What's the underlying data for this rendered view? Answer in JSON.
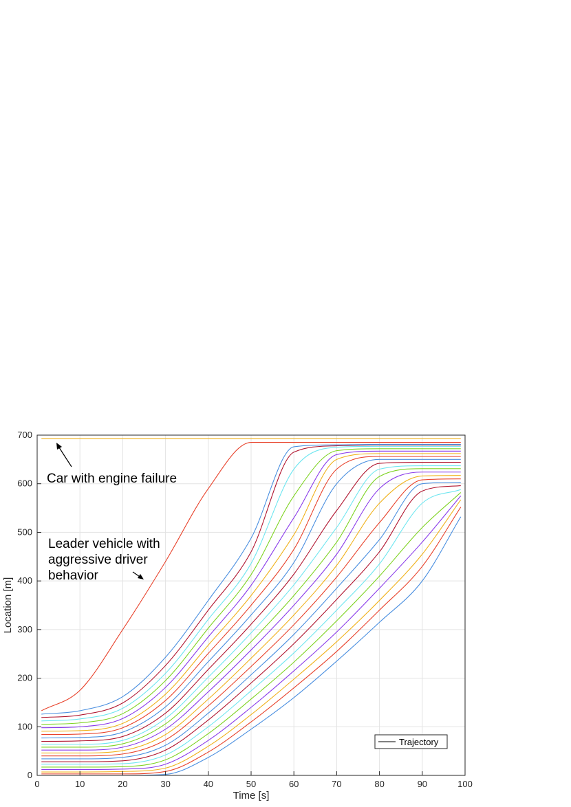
{
  "chart_data": {
    "type": "line",
    "title": "",
    "xlabel": "Time [s]",
    "ylabel": "Location [m]",
    "xlim": [
      0,
      100
    ],
    "ylim": [
      0,
      700
    ],
    "xticks": [
      "0",
      "10",
      "20",
      "30",
      "40",
      "50",
      "60",
      "70",
      "80",
      "90",
      "100"
    ],
    "yticks": [
      "0",
      "100",
      "200",
      "300",
      "400",
      "500",
      "600",
      "700"
    ],
    "grid": true,
    "legend": {
      "location": "bottom-right",
      "entries": [
        "Trajectory"
      ]
    },
    "annotations": [
      {
        "lines": [
          "Car with engine failure"
        ]
      },
      {
        "lines": [
          "Leader vehicle with",
          "aggressive driver",
          "behavior"
        ]
      }
    ],
    "colors": [
      "#0072BD",
      "#D95319",
      "#EDB120",
      "#7E2F8E",
      "#77AC30",
      "#4DBEEE",
      "#A2142F"
    ],
    "series_colors_cycle": [
      "#4A8FE0",
      "#E8422B",
      "#F0B21C",
      "#8A3BEA",
      "#7ED321",
      "#6FE6F0",
      "#B0152F"
    ],
    "series": [
      {
        "x": [
          1,
          10,
          20,
          30,
          40,
          50,
          60,
          70,
          80,
          90,
          99
        ],
        "y": [
          0,
          0,
          0,
          2,
          37,
          95,
          160,
          235,
          315,
          400,
          532
        ]
      },
      {
        "x": [
          1,
          10,
          20,
          30,
          40,
          50,
          60,
          70,
          80,
          90,
          99
        ],
        "y": [
          3,
          3,
          3,
          8,
          48,
          110,
          180,
          255,
          340,
          430,
          552
        ]
      },
      {
        "x": [
          1,
          10,
          20,
          30,
          40,
          50,
          60,
          70,
          80,
          90,
          99
        ],
        "y": [
          7,
          7,
          8,
          15,
          60,
          125,
          198,
          275,
          360,
          455,
          567
        ]
      },
      {
        "x": [
          1,
          10,
          20,
          30,
          40,
          50,
          60,
          70,
          80,
          90,
          99
        ],
        "y": [
          12,
          12,
          13,
          23,
          72,
          140,
          215,
          295,
          385,
          480,
          575
        ]
      },
      {
        "x": [
          1,
          10,
          20,
          30,
          40,
          50,
          60,
          70,
          80,
          90,
          99
        ],
        "y": [
          17,
          17,
          18,
          32,
          86,
          157,
          233,
          318,
          410,
          510,
          582
        ]
      },
      {
        "x": [
          1,
          10,
          20,
          30,
          40,
          50,
          60,
          70,
          80,
          90,
          99
        ],
        "y": [
          23,
          23,
          24,
          42,
          100,
          174,
          252,
          340,
          435,
          560,
          588
        ]
      },
      {
        "x": [
          1,
          10,
          20,
          30,
          40,
          50,
          60,
          70,
          80,
          90,
          99
        ],
        "y": [
          28,
          28,
          30,
          52,
          114,
          190,
          271,
          362,
          460,
          585,
          596
        ]
      },
      {
        "x": [
          1,
          10,
          20,
          30,
          40,
          50,
          60,
          70,
          80,
          90,
          99
        ],
        "y": [
          34,
          34,
          37,
          62,
          128,
          207,
          290,
          385,
          485,
          600,
          603
        ]
      },
      {
        "x": [
          1,
          10,
          20,
          30,
          40,
          50,
          60,
          70,
          80,
          90,
          99
        ],
        "y": [
          40,
          40,
          44,
          73,
          143,
          224,
          310,
          408,
          520,
          608,
          610
        ]
      },
      {
        "x": [
          1,
          10,
          20,
          30,
          40,
          50,
          60,
          70,
          80,
          90,
          99
        ],
        "y": [
          46,
          46,
          51,
          84,
          157,
          241,
          330,
          432,
          560,
          616,
          617
        ]
      },
      {
        "x": [
          1,
          10,
          20,
          30,
          40,
          50,
          60,
          70,
          80,
          90,
          99
        ],
        "y": [
          52,
          52,
          58,
          95,
          172,
          258,
          350,
          455,
          590,
          624,
          624
        ]
      },
      {
        "x": [
          1,
          10,
          20,
          30,
          40,
          50,
          60,
          70,
          80,
          90,
          99
        ],
        "y": [
          58,
          58,
          65,
          106,
          187,
          275,
          370,
          480,
          615,
          631,
          631
        ]
      },
      {
        "x": [
          1,
          10,
          20,
          30,
          40,
          50,
          60,
          70,
          80,
          90,
          99
        ],
        "y": [
          64,
          64,
          72,
          117,
          202,
          293,
          392,
          510,
          630,
          637,
          637
        ]
      },
      {
        "x": [
          1,
          10,
          20,
          30,
          40,
          50,
          60,
          70,
          80,
          90,
          99
        ],
        "y": [
          70,
          71,
          80,
          128,
          218,
          311,
          414,
          545,
          642,
          644,
          644
        ]
      },
      {
        "x": [
          1,
          10,
          20,
          30,
          40,
          50,
          60,
          70,
          80,
          90,
          99
        ],
        "y": [
          77,
          78,
          89,
          141,
          234,
          330,
          438,
          600,
          650,
          650,
          650
        ]
      },
      {
        "x": [
          1,
          10,
          20,
          30,
          40,
          50,
          60,
          70,
          80,
          90,
          99
        ],
        "y": [
          84,
          85,
          98,
          154,
          251,
          350,
          465,
          630,
          656,
          656,
          656
        ]
      },
      {
        "x": [
          1,
          10,
          20,
          30,
          40,
          50,
          60,
          70,
          80,
          90,
          99
        ],
        "y": [
          91,
          92,
          107,
          167,
          268,
          370,
          495,
          650,
          662,
          662,
          662
        ]
      },
      {
        "x": [
          1,
          10,
          20,
          30,
          40,
          50,
          60,
          70,
          80,
          90,
          99
        ],
        "y": [
          98,
          100,
          117,
          181,
          285,
          391,
          530,
          660,
          667,
          667,
          667
        ]
      },
      {
        "x": [
          1,
          10,
          20,
          30,
          40,
          50,
          60,
          70,
          80,
          90,
          99
        ],
        "y": [
          105,
          108,
          127,
          195,
          303,
          413,
          575,
          668,
          672,
          672,
          672
        ]
      },
      {
        "x": [
          1,
          10,
          20,
          30,
          40,
          50,
          60,
          70,
          80,
          90,
          99
        ],
        "y": [
          112,
          116,
          138,
          210,
          321,
          436,
          630,
          675,
          677,
          677,
          677
        ]
      },
      {
        "x": [
          1,
          10,
          20,
          30,
          40,
          50,
          60,
          70,
          80,
          90,
          99
        ],
        "y": [
          119,
          124,
          149,
          226,
          340,
          460,
          665,
          678,
          680,
          680,
          680
        ]
      },
      {
        "x": [
          1,
          10,
          20,
          30,
          40,
          50,
          60,
          70,
          80,
          90,
          99
        ],
        "y": [
          126,
          133,
          162,
          243,
          360,
          488,
          676,
          680,
          681,
          681,
          681
        ]
      },
      {
        "x": [
          1,
          10,
          20,
          30,
          40,
          50,
          60,
          70,
          80,
          90,
          99
        ],
        "y": [
          133,
          175,
          300,
          440,
          590,
          685,
          685,
          685,
          685,
          685,
          685
        ]
      },
      {
        "x": [
          1,
          10,
          20,
          30,
          40,
          50,
          60,
          70,
          80,
          90,
          99
        ],
        "y": [
          693,
          693,
          693,
          693,
          693,
          693,
          693,
          693,
          693,
          693,
          693
        ]
      }
    ]
  }
}
